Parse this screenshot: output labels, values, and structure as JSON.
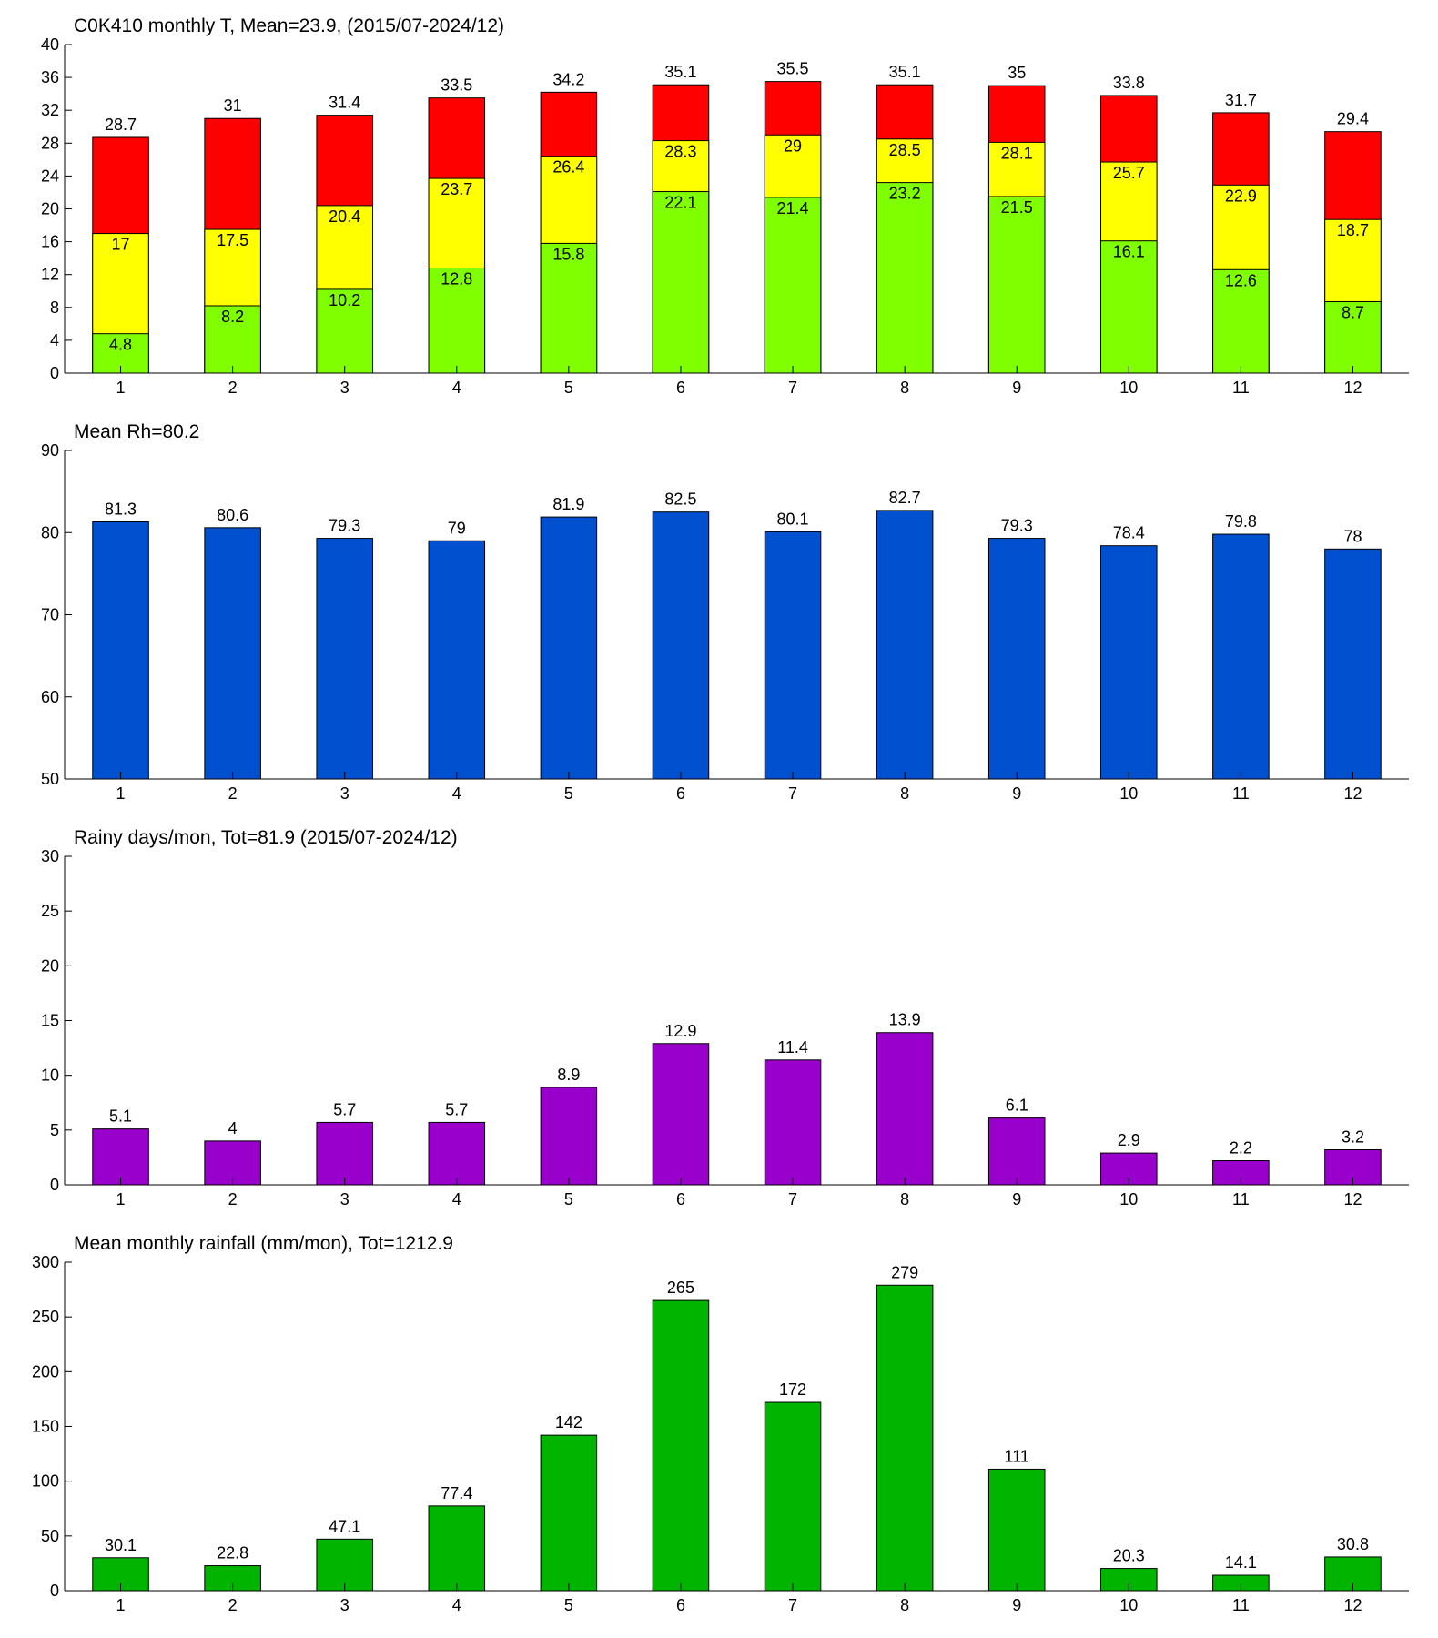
{
  "chart_data": [
    {
      "type": "bar",
      "title": "C0K410 monthly T, Mean=23.9, (2015/07-2024/12)",
      "categories": [
        "1",
        "2",
        "3",
        "4",
        "5",
        "6",
        "7",
        "8",
        "9",
        "10",
        "11",
        "12"
      ],
      "series": [
        {
          "color": "#80ff00",
          "values": [
            4.8,
            8.2,
            10.2,
            12.8,
            15.8,
            22.1,
            21.4,
            23.2,
            21.5,
            16.1,
            12.6,
            8.7
          ]
        },
        {
          "color": "#ffff00",
          "values": [
            17,
            17.5,
            20.4,
            23.7,
            26.4,
            28.3,
            29,
            28.5,
            28.1,
            25.7,
            22.9,
            18.7
          ]
        },
        {
          "color": "#ff0000",
          "values": [
            28.7,
            31,
            31.4,
            33.5,
            34.2,
            35.1,
            35.5,
            35.1,
            35,
            33.8,
            31.7,
            29.4
          ]
        }
      ],
      "ylim": [
        0,
        40
      ],
      "yticks": [
        0,
        4,
        8,
        12,
        16,
        20,
        24,
        28,
        32,
        36,
        40
      ]
    },
    {
      "type": "bar",
      "title": "Mean Rh=80.2",
      "categories": [
        "1",
        "2",
        "3",
        "4",
        "5",
        "6",
        "7",
        "8",
        "9",
        "10",
        "11",
        "12"
      ],
      "series": [
        {
          "color": "#0050d0",
          "values": [
            81.3,
            80.6,
            79.3,
            79,
            81.9,
            82.5,
            80.1,
            82.7,
            79.3,
            78.4,
            79.8,
            78
          ]
        }
      ],
      "ylim": [
        50,
        90
      ],
      "yticks": [
        50,
        60,
        70,
        80,
        90
      ]
    },
    {
      "type": "bar",
      "title": "Rainy days/mon, Tot=81.9 (2015/07-2024/12)",
      "categories": [
        "1",
        "2",
        "3",
        "4",
        "5",
        "6",
        "7",
        "8",
        "9",
        "10",
        "11",
        "12"
      ],
      "series": [
        {
          "color": "#9900cc",
          "values": [
            5.1,
            4,
            5.7,
            5.7,
            8.9,
            12.9,
            11.4,
            13.9,
            6.1,
            2.9,
            2.2,
            3.2
          ]
        }
      ],
      "ylim": [
        0,
        30
      ],
      "yticks": [
        0,
        5,
        10,
        15,
        20,
        25,
        30
      ]
    },
    {
      "type": "bar",
      "title": "Mean monthly rainfall (mm/mon), Tot=1212.9",
      "categories": [
        "1",
        "2",
        "3",
        "4",
        "5",
        "6",
        "7",
        "8",
        "9",
        "10",
        "11",
        "12"
      ],
      "series": [
        {
          "color": "#00b400",
          "values": [
            30.1,
            22.8,
            47.1,
            77.4,
            142,
            265,
            172,
            279,
            111,
            20.3,
            14.1,
            30.8
          ]
        }
      ],
      "ylim": [
        0,
        300
      ],
      "yticks": [
        0,
        50,
        100,
        150,
        200,
        250,
        300
      ]
    }
  ]
}
